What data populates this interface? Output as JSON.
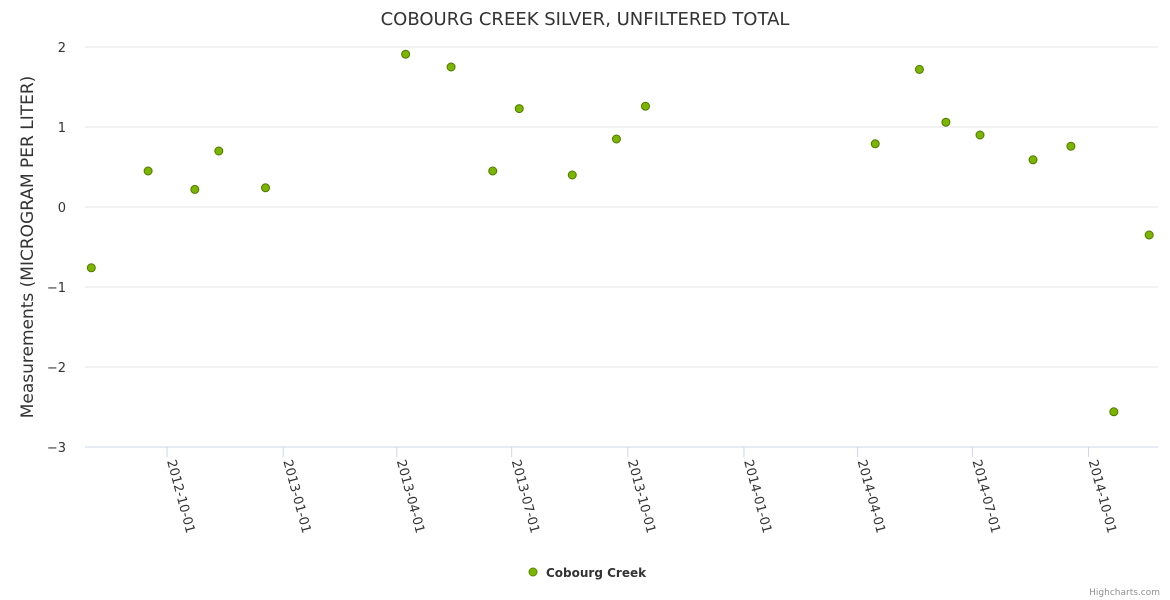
{
  "chart_data": {
    "type": "scatter",
    "title": "COBOURG CREEK SILVER, UNFILTERED TOTAL",
    "xlabel": "",
    "ylabel": "Measurements (MICROGRAM PER LITER)",
    "ylim": [
      -3,
      2
    ],
    "yticks": [
      2,
      1,
      0,
      -1,
      -2,
      -3
    ],
    "ytick_labels": [
      "2",
      "1",
      "0",
      "−1",
      "−2",
      "−3"
    ],
    "xlim": [
      "2012-07-28",
      "2014-11-25"
    ],
    "xticks": [
      "2012-10-01",
      "2013-01-01",
      "2013-04-01",
      "2013-07-01",
      "2013-10-01",
      "2014-01-01",
      "2014-04-01",
      "2014-07-01",
      "2014-10-01"
    ],
    "grid": true,
    "legend_position": "bottom-center",
    "series": [
      {
        "name": "Cobourg Creek",
        "color": "#7cb500",
        "points": [
          [
            "2012-08-02",
            -0.76
          ],
          [
            "2012-09-16",
            0.45
          ],
          [
            "2012-10-23",
            0.22
          ],
          [
            "2012-11-11",
            0.7
          ],
          [
            "2012-12-18",
            0.24
          ],
          [
            "2013-04-08",
            1.91
          ],
          [
            "2013-05-14",
            1.75
          ],
          [
            "2013-06-16",
            0.45
          ],
          [
            "2013-07-07",
            1.23
          ],
          [
            "2013-08-18",
            0.4
          ],
          [
            "2013-09-22",
            0.85
          ],
          [
            "2013-10-15",
            1.26
          ],
          [
            "2014-04-15",
            0.79
          ],
          [
            "2014-05-20",
            1.72
          ],
          [
            "2014-06-10",
            1.06
          ],
          [
            "2014-07-07",
            0.9
          ],
          [
            "2014-08-18",
            0.59
          ],
          [
            "2014-09-17",
            0.76
          ],
          [
            "2014-10-21",
            -2.56
          ],
          [
            "2014-11-18",
            -0.35
          ]
        ]
      }
    ]
  },
  "credits": "Highcharts.com"
}
